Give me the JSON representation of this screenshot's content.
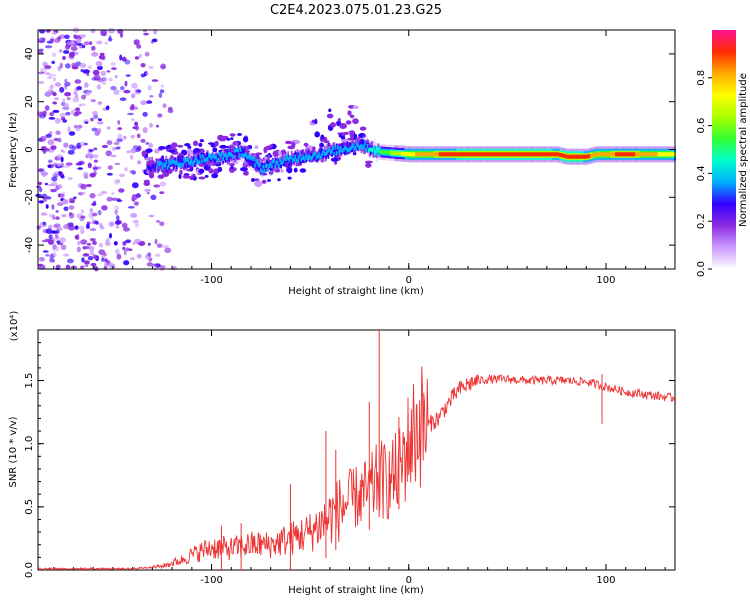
{
  "title": "C2E4.2023.075.01.23.G25",
  "chart_data": [
    {
      "type": "heatmap",
      "xlabel": "Height of straight line (km)",
      "ylabel": "Frequency (Hz)",
      "xlim": [
        -188,
        135
      ],
      "ylim": [
        -50,
        50
      ],
      "x_ticks": [
        -100,
        0,
        100
      ],
      "y_ticks": [
        -40,
        -20,
        0,
        20,
        40
      ],
      "colorbar": {
        "label": "Normalized spectral amplitude",
        "range": [
          0,
          1
        ],
        "ticks": [
          "0.0",
          "0.2",
          "0.4",
          "0.6",
          "0.8"
        ],
        "colormap": [
          "#ffffff",
          "#cc99ff",
          "#8a2be2",
          "#3300ff",
          "#00b0ff",
          "#00ffcc",
          "#33ff33",
          "#aaff00",
          "#ffff00",
          "#ffaa00",
          "#ff2a00",
          "#ff1493"
        ]
      },
      "ridge": {
        "x": [
          -133,
          -120,
          -105,
          -95,
          -85,
          -75,
          -65,
          -55,
          -45,
          -35,
          -25,
          -15,
          0,
          20,
          40,
          60,
          75,
          80,
          90,
          95,
          110,
          135
        ],
        "y": [
          -7,
          -6,
          -4,
          -3,
          -1,
          -8,
          -5,
          -3,
          -2,
          0,
          2,
          -1,
          -2,
          -2,
          -2,
          -2,
          -2,
          -3,
          -3,
          -2,
          -2,
          -2
        ],
        "amplitude": [
          0.3,
          0.35,
          0.35,
          0.35,
          0.4,
          0.4,
          0.35,
          0.35,
          0.35,
          0.35,
          0.35,
          0.5,
          0.75,
          0.9,
          0.95,
          0.95,
          0.9,
          0.95,
          0.9,
          0.8,
          0.9,
          0.7
        ]
      },
      "noise_region_x": [
        -188,
        -120
      ]
    },
    {
      "type": "line",
      "xlabel": "Height of straight line (km)",
      "ylabel": "SNR (10 * v/v)",
      "y_multiplier": "(x10⁴)",
      "xlim": [
        -188,
        135
      ],
      "ylim": [
        0,
        1.9
      ],
      "x_ticks": [
        -100,
        0,
        100
      ],
      "y_ticks": [
        "0.0",
        "0.5",
        "1.0",
        "1.5"
      ],
      "color": "#ee3333",
      "envelope": {
        "x": [
          -188,
          -140,
          -125,
          -115,
          -110,
          -100,
          -90,
          -80,
          -70,
          -60,
          -50,
          -40,
          -30,
          -20,
          -15,
          -10,
          -5,
          0,
          5,
          10,
          15,
          20,
          25,
          30,
          35,
          40,
          50,
          60,
          70,
          80,
          90,
          100,
          110,
          120,
          135
        ],
        "y": [
          0.01,
          0.01,
          0.03,
          0.08,
          0.12,
          0.18,
          0.17,
          0.2,
          0.2,
          0.25,
          0.3,
          0.42,
          0.55,
          0.62,
          0.72,
          0.7,
          0.78,
          1.0,
          1.15,
          1.15,
          1.2,
          1.32,
          1.42,
          1.47,
          1.5,
          1.51,
          1.51,
          1.5,
          1.5,
          1.5,
          1.49,
          1.45,
          1.41,
          1.39,
          1.36
        ]
      },
      "spikes": [
        {
          "x": -15,
          "y": 1.9
        },
        {
          "x": -20,
          "y": 1.33
        },
        {
          "x": -37,
          "y": 0.95
        },
        {
          "x": -42,
          "y": 1.1
        },
        {
          "x": -60,
          "y": 0.68
        },
        {
          "x": -85,
          "y": 0.37
        },
        {
          "x": -95,
          "y": 0.35
        },
        {
          "x": -5,
          "y": 1.21
        },
        {
          "x": 98,
          "y": 1.55
        }
      ]
    }
  ]
}
